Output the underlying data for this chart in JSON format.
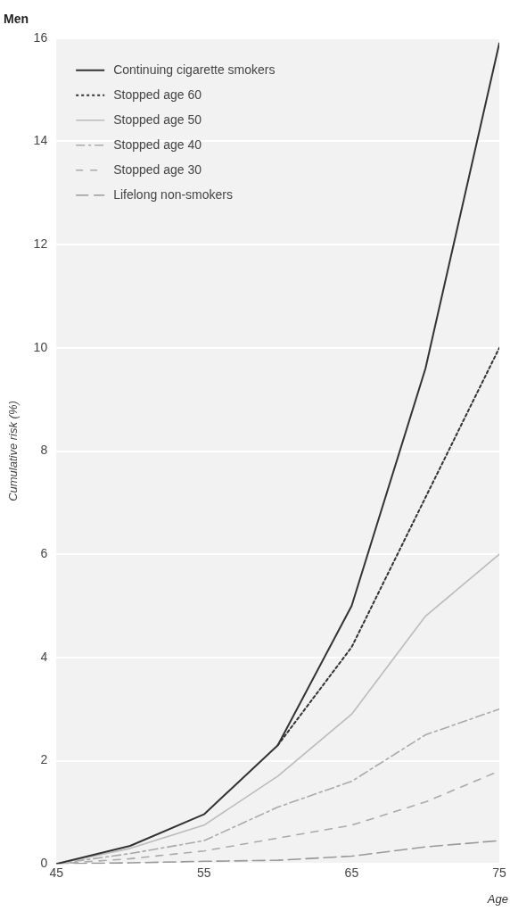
{
  "chart_data": {
    "type": "line",
    "title": "Men",
    "xlabel": "Age",
    "ylabel": "Cumulative risk (%)",
    "x": [
      45,
      50,
      55,
      60,
      65,
      70,
      75
    ],
    "series": [
      {
        "name": "Continuing cigarette smokers",
        "color": "#333333",
        "line_style": "solid",
        "values": [
          0,
          0.35,
          0.96,
          2.3,
          5.0,
          9.6,
          15.9
        ]
      },
      {
        "name": "Stopped age 60",
        "color": "#333333",
        "line_style": "dotted",
        "x": [
          60,
          65,
          70,
          75
        ],
        "values": [
          2.3,
          4.2,
          7.1,
          10.0
        ]
      },
      {
        "name": "Stopped age 50",
        "color": "#bbbbbb",
        "line_style": "solid",
        "values": [
          0,
          0.3,
          0.75,
          1.7,
          2.9,
          4.8,
          6.0
        ]
      },
      {
        "name": "Stopped age 40",
        "color": "#aaaaaa",
        "line_style": "dashed",
        "values": [
          0,
          0.2,
          0.45,
          1.1,
          1.6,
          2.5,
          3.0
        ]
      },
      {
        "name": "Stopped age 30",
        "color": "#aaaaaa",
        "line_style": "dashed",
        "values": [
          0,
          0.1,
          0.25,
          0.5,
          0.75,
          1.2,
          1.8
        ]
      },
      {
        "name": "Lifelong non-smokers",
        "color": "#999999",
        "line_style": "dashed",
        "values": [
          0,
          0.02,
          0.05,
          0.07,
          0.15,
          0.33,
          0.45
        ]
      }
    ],
    "xlim": [
      45,
      75
    ],
    "xticks": [
      45,
      55,
      65,
      75
    ],
    "ylim": [
      0,
      16
    ],
    "yticks": [
      0,
      2,
      4,
      6,
      8,
      10,
      12,
      14,
      16
    ],
    "grid": "y",
    "legend": "top left",
    "marker": "none"
  }
}
